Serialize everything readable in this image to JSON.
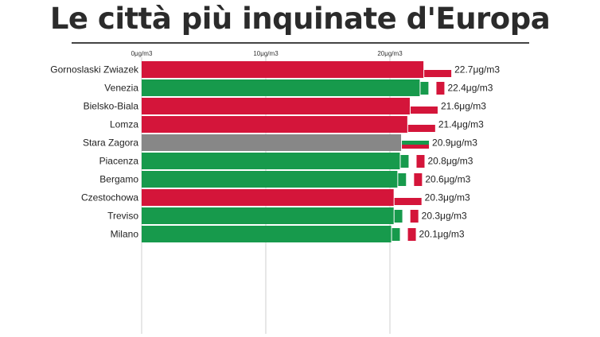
{
  "title": "Le città più inquinate d'Europa",
  "colors": {
    "red": "#d4153a",
    "green": "#179a4c",
    "gray": "#878787",
    "white": "#ffffff",
    "grid": "#cfcfcf"
  },
  "chart_data": {
    "type": "bar",
    "orientation": "horizontal",
    "title": "Le città più inquinate d'Europa",
    "xlim": [
      0,
      30
    ],
    "ticks": [
      {
        "value": 0,
        "label": "0μg/m3"
      },
      {
        "value": 10,
        "label": "10μg/m3"
      },
      {
        "value": 20,
        "label": "20μg/m3"
      }
    ],
    "unit": "μg/m3",
    "grid": true,
    "categories": [
      "Gornoslaski Zwiazek",
      "Venezia",
      "Bielsko-Biala",
      "Lomza",
      "Stara Zagora",
      "Piacenza",
      "Bergamo",
      "Czestochowa",
      "Treviso",
      "Milano"
    ],
    "values": [
      22.7,
      22.4,
      21.6,
      21.4,
      20.9,
      20.8,
      20.6,
      20.3,
      20.3,
      20.1
    ],
    "value_labels": [
      "22.7μg/m3",
      "22.4μg/m3",
      "21.6μg/m3",
      "21.4μg/m3",
      "20.9μg/m3",
      "20.8μg/m3",
      "20.6μg/m3",
      "20.3μg/m3",
      "20.3μg/m3",
      "20.1μg/m3"
    ],
    "bar_colors": [
      "red",
      "green",
      "red",
      "red",
      "gray",
      "green",
      "green",
      "red",
      "green",
      "green"
    ],
    "flag_icons": [
      "poland-flag-icon",
      "italy-flag-icon",
      "poland-flag-icon",
      "poland-flag-icon",
      "bulgaria-flag-icon",
      "italy-flag-icon",
      "italy-flag-icon",
      "poland-flag-icon",
      "italy-flag-icon",
      "italy-flag-icon"
    ]
  }
}
